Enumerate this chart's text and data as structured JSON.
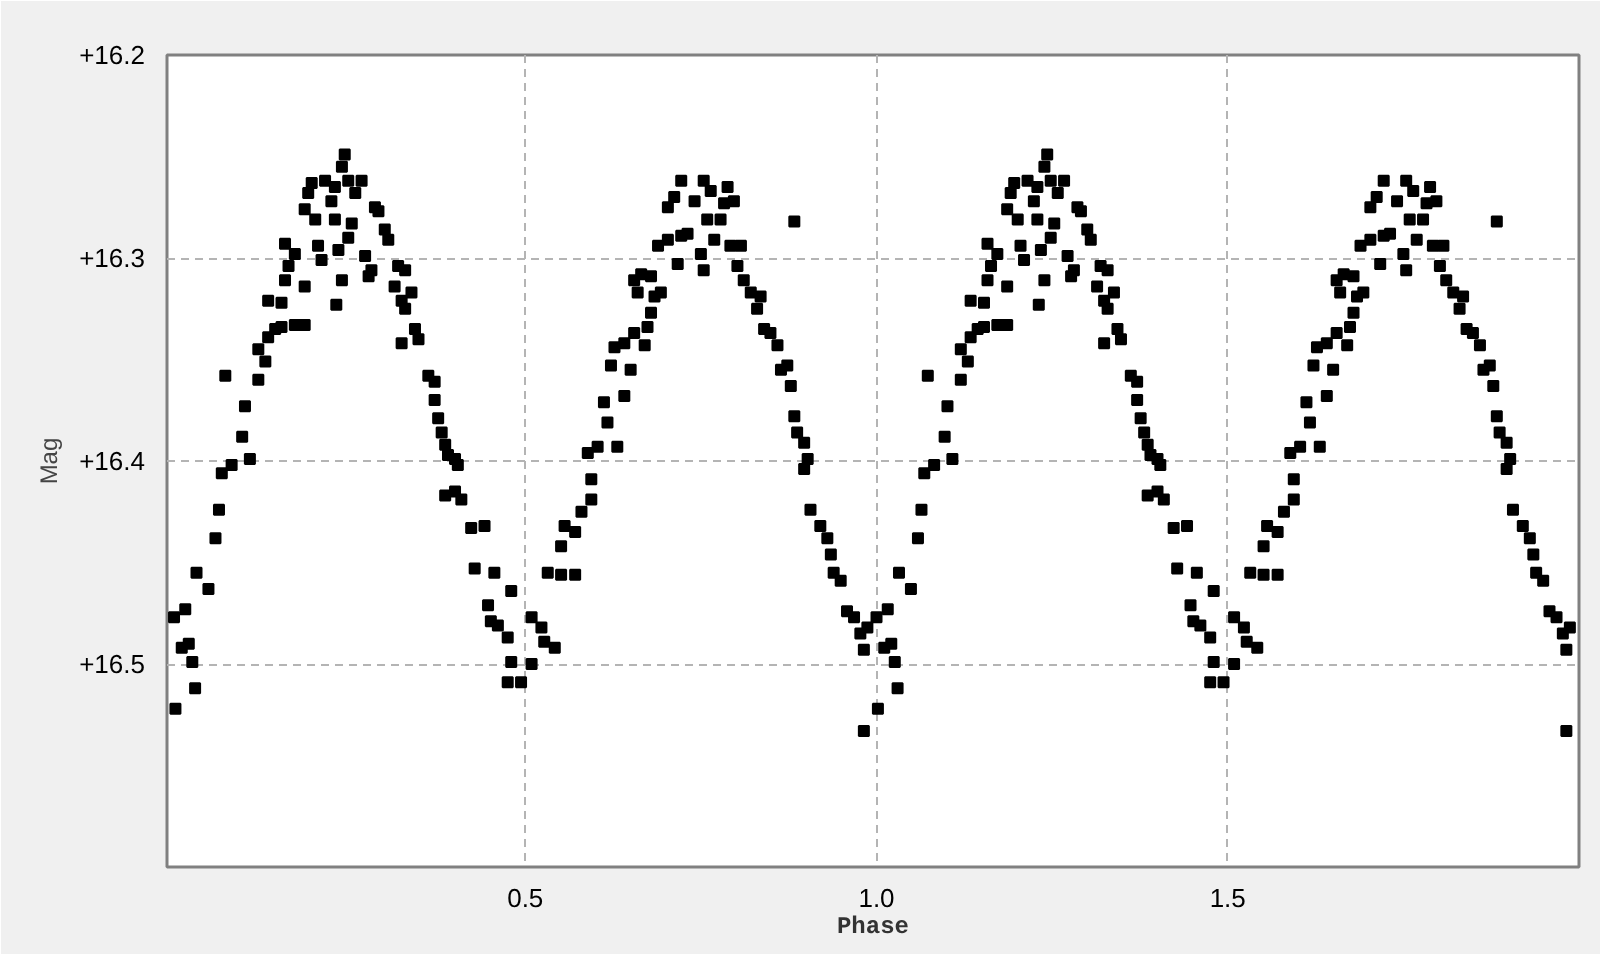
{
  "chart_data": {
    "type": "scatter",
    "xlabel": "Phase",
    "ylabel": "Mag",
    "xlim": [
      -0.01,
      2.0
    ],
    "ylim": [
      16.6,
      16.2
    ],
    "xticks": [
      0.5,
      {
        "value": 1,
        "label": "1.0"
      },
      1.5
    ],
    "yticks": [
      {
        "value": 16.2,
        "label": "+16.2"
      },
      {
        "value": 16.3,
        "label": "+16.3"
      },
      {
        "value": 16.4,
        "label": "+16.4"
      },
      {
        "value": 16.5,
        "label": "+16.5"
      }
    ],
    "grid": true,
    "marker": "square",
    "series": [
      {
        "color": "#000000",
        "x": [
          0.0,
          0.002,
          0.011,
          0.016,
          0.026,
          0.03,
          0.021,
          0.032,
          0.049,
          0.059,
          0.064,
          0.068,
          0.082,
          0.097,
          0.108,
          0.101,
          0.073,
          0.12,
          0.12,
          0.13,
          0.134,
          0.144,
          0.153,
          0.172,
          0.186,
          0.134,
          0.153,
          0.158,
          0.163,
          0.158,
          0.172,
          0.186,
          0.186,
          0.191,
          0.201,
          0.205,
          0.21,
          0.196,
          0.215,
          0.224,
          0.229,
          0.234,
          0.231,
          0.239,
          0.229,
          0.239,
          0.243,
          0.248,
          0.248,
          0.253,
          0.258,
          0.267,
          0.272,
          0.277,
          0.281,
          0.286,
          0.291,
          0.3,
          0.305,
          0.319,
          0.329,
          0.314,
          0.324,
          0.338,
          0.329,
          0.343,
          0.324,
          0.348,
          0.362,
          0.371,
          0.371,
          0.376,
          0.381,
          0.386,
          0.39,
          0.4,
          0.404,
          0.386,
          0.4,
          0.409,
          0.423,
          0.442,
          0.428,
          0.456,
          0.447,
          0.451,
          0.461,
          0.48,
          0.475,
          0.48,
          0.475,
          0.494,
          0.509,
          0.509,
          0.523,
          0.542,
          0.527,
          0.532,
          0.551,
          0.551,
          0.556,
          0.571,
          0.571,
          0.58,
          0.594,
          0.594,
          0.589,
          0.603,
          0.612,
          0.617,
          0.631,
          0.641,
          0.622,
          0.627,
          0.641,
          0.65,
          0.655,
          0.67,
          0.674,
          0.679,
          0.66,
          0.655,
          0.665,
          0.679,
          0.693,
          0.684,
          0.689,
          0.703,
          0.717,
          0.722,
          0.731,
          0.754,
          0.75,
          0.703,
          0.712,
          0.722,
          0.741,
          0.754,
          0.764,
          0.759,
          0.769,
          0.778,
          0.783,
          0.788,
          0.797,
          0.792,
          0.807,
          0.802,
          0.811,
          0.821,
          0.835,
          0.83,
          0.84,
          0.849,
          0.859,
          0.864,
          0.873,
          0.878,
          0.883,
          0.887,
          0.897,
          0.902,
          0.897,
          0.906,
          0.92,
          0.93,
          0.935,
          0.939,
          0.949,
          0.958,
          0.968,
          0.977,
          0.982,
          0.987,
          0.982,
          0.883,
          1.0,
          1.002,
          1.011,
          1.016,
          1.026,
          1.03,
          1.021,
          1.032,
          1.049,
          1.059,
          1.064,
          1.068,
          1.082,
          1.097,
          1.108,
          1.101,
          1.073,
          1.12,
          1.12,
          1.13,
          1.134,
          1.144,
          1.153,
          1.172,
          1.186,
          1.134,
          1.153,
          1.158,
          1.163,
          1.158,
          1.172,
          1.186,
          1.186,
          1.191,
          1.201,
          1.205,
          1.21,
          1.196,
          1.215,
          1.224,
          1.229,
          1.234,
          1.231,
          1.239,
          1.229,
          1.239,
          1.243,
          1.248,
          1.248,
          1.253,
          1.258,
          1.267,
          1.272,
          1.277,
          1.281,
          1.286,
          1.291,
          1.3,
          1.305,
          1.319,
          1.329,
          1.314,
          1.324,
          1.338,
          1.329,
          1.343,
          1.324,
          1.348,
          1.362,
          1.371,
          1.371,
          1.376,
          1.381,
          1.386,
          1.39,
          1.4,
          1.404,
          1.386,
          1.4,
          1.409,
          1.423,
          1.442,
          1.428,
          1.456,
          1.447,
          1.451,
          1.461,
          1.48,
          1.475,
          1.48,
          1.475,
          1.494,
          1.509,
          1.509,
          1.523,
          1.542,
          1.527,
          1.532,
          1.551,
          1.551,
          1.556,
          1.571,
          1.571,
          1.58,
          1.594,
          1.594,
          1.589,
          1.603,
          1.612,
          1.617,
          1.631,
          1.641,
          1.622,
          1.627,
          1.641,
          1.65,
          1.655,
          1.67,
          1.674,
          1.679,
          1.66,
          1.655,
          1.665,
          1.679,
          1.693,
          1.684,
          1.689,
          1.703,
          1.717,
          1.722,
          1.731,
          1.754,
          1.75,
          1.703,
          1.712,
          1.722,
          1.741,
          1.754,
          1.764,
          1.759,
          1.769,
          1.778,
          1.783,
          1.788,
          1.797,
          1.792,
          1.807,
          1.802,
          1.811,
          1.821,
          1.835,
          1.83,
          1.84,
          1.849,
          1.859,
          1.864,
          1.873,
          1.878,
          1.883,
          1.887,
          1.897,
          1.902,
          1.897,
          1.906,
          1.92,
          1.93,
          1.935,
          1.939,
          1.949,
          1.958,
          1.968,
          1.977,
          1.982,
          1.987,
          1.982,
          1.883
        ],
        "values": [
          16.477,
          16.522,
          16.492,
          16.473,
          16.499,
          16.512,
          16.49,
          16.455,
          16.463,
          16.438,
          16.424,
          16.406,
          16.402,
          16.388,
          16.399,
          16.373,
          16.358,
          16.36,
          16.345,
          16.351,
          16.339,
          16.335,
          16.334,
          16.333,
          16.333,
          16.321,
          16.322,
          16.311,
          16.304,
          16.293,
          16.298,
          16.314,
          16.276,
          16.268,
          16.281,
          16.294,
          16.301,
          16.263,
          16.262,
          16.272,
          16.281,
          16.296,
          16.323,
          16.311,
          16.265,
          16.255,
          16.249,
          16.262,
          16.29,
          16.283,
          16.268,
          16.262,
          16.299,
          16.309,
          16.306,
          16.275,
          16.277,
          16.286,
          16.291,
          16.304,
          16.306,
          16.314,
          16.321,
          16.317,
          16.325,
          16.335,
          16.342,
          16.34,
          16.358,
          16.361,
          16.37,
          16.379,
          16.386,
          16.392,
          16.397,
          16.399,
          16.402,
          16.417,
          16.415,
          16.419,
          16.433,
          16.432,
          16.453,
          16.455,
          16.471,
          16.479,
          16.481,
          16.464,
          16.487,
          16.499,
          16.509,
          16.509,
          16.5,
          16.477,
          16.482,
          16.492,
          16.489,
          16.455,
          16.456,
          16.442,
          16.432,
          16.456,
          16.435,
          16.425,
          16.419,
          16.409,
          16.396,
          16.393,
          16.371,
          16.381,
          16.393,
          16.368,
          16.353,
          16.344,
          16.342,
          16.355,
          16.337,
          16.343,
          16.334,
          16.327,
          16.317,
          16.311,
          16.308,
          16.309,
          16.317,
          16.319,
          16.294,
          16.291,
          16.303,
          16.289,
          16.288,
          16.306,
          16.298,
          16.275,
          16.27,
          16.262,
          16.272,
          16.262,
          16.267,
          16.281,
          16.291,
          16.281,
          16.273,
          16.265,
          16.272,
          16.294,
          16.294,
          16.304,
          16.311,
          16.317,
          16.319,
          16.325,
          16.335,
          16.337,
          16.343,
          16.355,
          16.353,
          16.363,
          16.378,
          16.386,
          16.391,
          16.399,
          16.404,
          16.424,
          16.432,
          16.438,
          16.446,
          16.455,
          16.459,
          16.474,
          16.477,
          16.485,
          16.493,
          16.482,
          16.533,
          16.282,
          16.477,
          16.522,
          16.492,
          16.473,
          16.499,
          16.512,
          16.49,
          16.455,
          16.463,
          16.438,
          16.424,
          16.406,
          16.402,
          16.388,
          16.399,
          16.373,
          16.358,
          16.36,
          16.345,
          16.351,
          16.339,
          16.335,
          16.334,
          16.333,
          16.333,
          16.321,
          16.322,
          16.311,
          16.304,
          16.293,
          16.298,
          16.314,
          16.276,
          16.268,
          16.281,
          16.294,
          16.301,
          16.263,
          16.262,
          16.272,
          16.281,
          16.296,
          16.323,
          16.311,
          16.265,
          16.255,
          16.249,
          16.262,
          16.29,
          16.283,
          16.268,
          16.262,
          16.299,
          16.309,
          16.306,
          16.275,
          16.277,
          16.286,
          16.291,
          16.304,
          16.306,
          16.314,
          16.321,
          16.317,
          16.325,
          16.335,
          16.342,
          16.34,
          16.358,
          16.361,
          16.37,
          16.379,
          16.386,
          16.392,
          16.397,
          16.399,
          16.402,
          16.417,
          16.415,
          16.419,
          16.433,
          16.432,
          16.453,
          16.455,
          16.471,
          16.479,
          16.481,
          16.464,
          16.487,
          16.499,
          16.509,
          16.509,
          16.5,
          16.477,
          16.482,
          16.492,
          16.489,
          16.455,
          16.456,
          16.442,
          16.432,
          16.456,
          16.435,
          16.425,
          16.419,
          16.409,
          16.396,
          16.393,
          16.371,
          16.381,
          16.393,
          16.368,
          16.353,
          16.344,
          16.342,
          16.355,
          16.337,
          16.343,
          16.334,
          16.327,
          16.317,
          16.311,
          16.308,
          16.309,
          16.317,
          16.319,
          16.294,
          16.291,
          16.303,
          16.289,
          16.288,
          16.306,
          16.298,
          16.275,
          16.27,
          16.262,
          16.272,
          16.262,
          16.267,
          16.281,
          16.291,
          16.281,
          16.273,
          16.265,
          16.272,
          16.294,
          16.294,
          16.304,
          16.311,
          16.317,
          16.319,
          16.325,
          16.335,
          16.337,
          16.343,
          16.355,
          16.353,
          16.363,
          16.378,
          16.386,
          16.391,
          16.399,
          16.404,
          16.424,
          16.432,
          16.438,
          16.446,
          16.455,
          16.459,
          16.474,
          16.477,
          16.485,
          16.493,
          16.482,
          16.533,
          16.282
        ]
      }
    ]
  }
}
